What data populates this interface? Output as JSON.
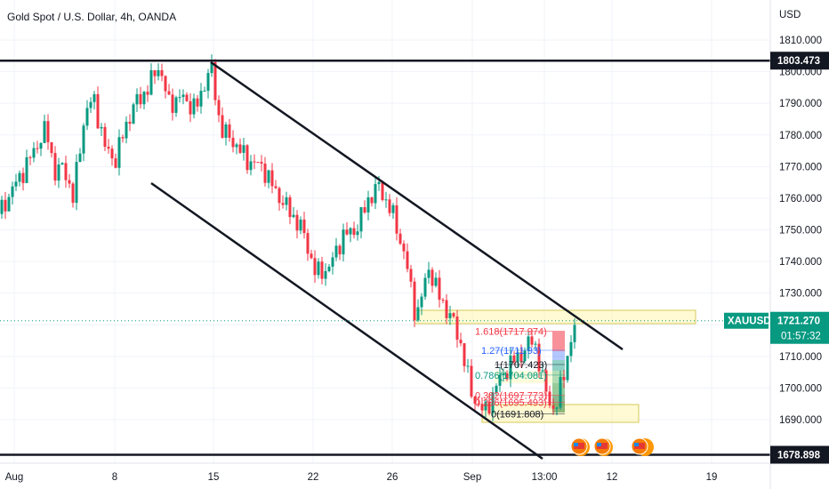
{
  "chart_data": {
    "type": "candlestick",
    "title": "Gold Spot / U.S. Dollar, 4h, OANDA",
    "currency": "USD",
    "symbol": "XAUUSD",
    "last_price": "1721.270",
    "countdown": "01:57:32",
    "ylim": [
      1675,
      1815
    ],
    "y_ticks": [
      "1810.000",
      "1800.000",
      "1790.000",
      "1780.000",
      "1770.000",
      "1760.000",
      "1750.000",
      "1740.000",
      "1730.000",
      "1720.000",
      "1710.000",
      "1700.000",
      "1690.000"
    ],
    "x_ticks": [
      "Aug",
      "8",
      "15",
      "22",
      "26",
      "Sep",
      "13:00",
      "12",
      "19"
    ],
    "horizontal_levels": [
      {
        "label": "1803.473",
        "value": 1803.473
      },
      {
        "label": "1678.898",
        "value": 1678.898
      }
    ],
    "fib_levels": [
      {
        "label": "1.618(1717.974)",
        "value": 1717.974,
        "color": "#f23645"
      },
      {
        "label": "1.27(1711.93)",
        "value": 1711.93,
        "color": "#2962ff"
      },
      {
        "label": "1(1707.423)",
        "value": 1707.423,
        "color": "#131722"
      },
      {
        "label": "0.786(1704.081)",
        "value": 1704.081,
        "color": "#089981"
      },
      {
        "label": "0.382(1697.773)",
        "value": 1697.773,
        "color": "#f23645"
      },
      {
        "label": "0.236(1695.493)",
        "value": 1695.493,
        "color": "#f23645"
      },
      {
        "label": "0(1691.808)",
        "value": 1691.808,
        "color": "#131722"
      }
    ],
    "colors": {
      "up": "#089981",
      "down": "#f23645",
      "zone": "#fff59d",
      "price_tag": "#089981"
    }
  }
}
